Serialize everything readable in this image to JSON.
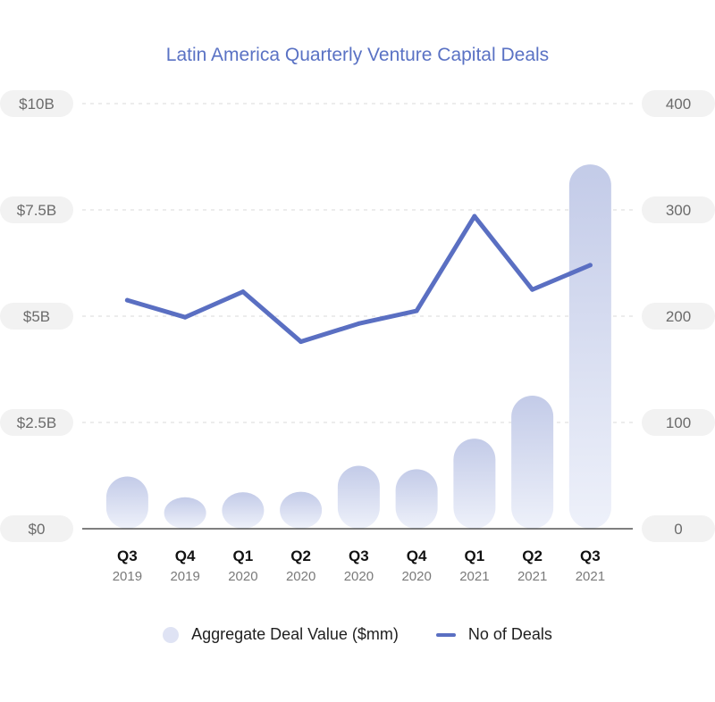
{
  "title": "Latin America Quarterly Venture Capital Deals",
  "colors": {
    "title": "#5a72c4",
    "bar_top": "#c3cbe8",
    "bar_bottom": "#eef1fa",
    "line": "#5a6fc2",
    "pill": "#f2f2f2",
    "grid": "#d9d9d9",
    "axis": "#333333"
  },
  "legend": {
    "bar_label": "Aggregate Deal Value ($mm)",
    "line_label": "No of Deals"
  },
  "chart_data": {
    "type": "bar",
    "title": "Latin America Quarterly Venture Capital Deals",
    "categories": [
      {
        "quarter": "Q3",
        "year": "2019"
      },
      {
        "quarter": "Q4",
        "year": "2019"
      },
      {
        "quarter": "Q1",
        "year": "2020"
      },
      {
        "quarter": "Q2",
        "year": "2020"
      },
      {
        "quarter": "Q3",
        "year": "2020"
      },
      {
        "quarter": "Q4",
        "year": "2020"
      },
      {
        "quarter": "Q1",
        "year": "2021"
      },
      {
        "quarter": "Q2",
        "year": "2021"
      },
      {
        "quarter": "Q3",
        "year": "2021"
      }
    ],
    "series": [
      {
        "name": "Aggregate Deal Value ($mm)",
        "type": "bar",
        "axis": "left",
        "values": [
          1230,
          740,
          860,
          870,
          1480,
          1400,
          2120,
          3130,
          8570
        ]
      },
      {
        "name": "No of Deals",
        "type": "line",
        "axis": "right",
        "values": [
          215,
          199,
          223,
          176,
          193,
          205,
          294,
          225,
          248
        ]
      }
    ],
    "y_left": {
      "range": [
        0,
        10000
      ],
      "ticks": [
        0,
        2500,
        5000,
        7500,
        10000
      ],
      "tick_labels": [
        "$0",
        "$2.5B",
        "$5B",
        "$7.5B",
        "$10B"
      ]
    },
    "y_right": {
      "range": [
        0,
        400
      ],
      "ticks": [
        0,
        100,
        200,
        300,
        400
      ],
      "tick_labels": [
        "0",
        "100",
        "200",
        "300",
        "400"
      ]
    },
    "grid": true,
    "legend_position": "bottom"
  }
}
